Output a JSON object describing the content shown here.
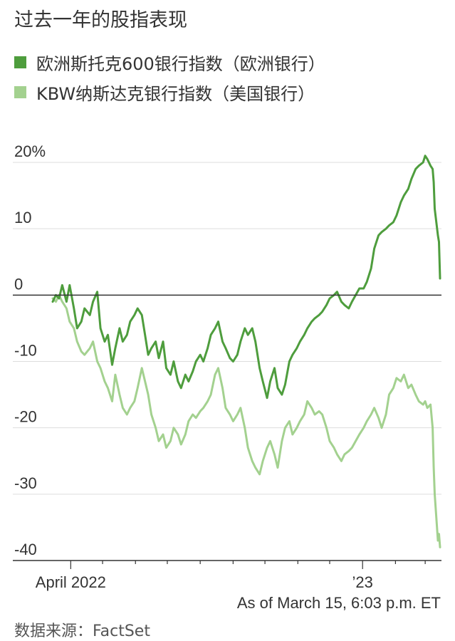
{
  "title": "过去一年的股指表现",
  "source": "数据来源：FactSet",
  "as_of": "As of March 15, 6:03 p.m. ET",
  "colors": {
    "europe": "#4e9d3d",
    "us": "#a3d18f",
    "grid": "#dddddd",
    "zero": "#333333"
  },
  "chart_data": {
    "type": "line",
    "y_unit": "%",
    "ylim": [
      -40,
      20
    ],
    "y_ticks": [
      20,
      10,
      0,
      -10,
      -20,
      -30,
      -40
    ],
    "y_tick_labels": [
      "20%",
      "10",
      "0",
      "-10",
      "-20",
      "-30",
      "-40"
    ],
    "x_range": [
      "2022-03-15",
      "2023-03-15"
    ],
    "x_tick_labels": [
      {
        "date": "2022-04-01",
        "label": "April 2022"
      },
      {
        "date": "2023-01-01",
        "label": "’23"
      }
    ],
    "x_minor_ticks": [
      "2022-05-01",
      "2022-06-01",
      "2022-07-01",
      "2022-08-01",
      "2022-09-01",
      "2022-10-01",
      "2022-11-01",
      "2022-12-01",
      "2023-02-01",
      "2023-03-01"
    ],
    "grid": true,
    "legend_position": "top-left",
    "series": [
      {
        "key": "europe",
        "name": "欧洲斯托克600银行指数（欧洲银行）",
        "points": [
          [
            "2022-03-15",
            -1
          ],
          [
            "2022-03-18",
            0
          ],
          [
            "2022-03-21",
            -0.5
          ],
          [
            "2022-03-24",
            1.5
          ],
          [
            "2022-03-28",
            -1
          ],
          [
            "2022-03-31",
            1.5
          ],
          [
            "2022-04-04",
            -2
          ],
          [
            "2022-04-07",
            -5
          ],
          [
            "2022-04-11",
            -4
          ],
          [
            "2022-04-14",
            -2
          ],
          [
            "2022-04-19",
            -3
          ],
          [
            "2022-04-22",
            -1
          ],
          [
            "2022-04-26",
            0.5
          ],
          [
            "2022-04-29",
            -5
          ],
          [
            "2022-05-03",
            -7
          ],
          [
            "2022-05-06",
            -6
          ],
          [
            "2022-05-10",
            -10.5
          ],
          [
            "2022-05-13",
            -8
          ],
          [
            "2022-05-17",
            -5
          ],
          [
            "2022-05-20",
            -7
          ],
          [
            "2022-05-24",
            -6
          ],
          [
            "2022-05-27",
            -4
          ],
          [
            "2022-05-31",
            -3
          ],
          [
            "2022-06-03",
            -2
          ],
          [
            "2022-06-07",
            -3
          ],
          [
            "2022-06-10",
            -6
          ],
          [
            "2022-06-13",
            -9
          ],
          [
            "2022-06-16",
            -8
          ],
          [
            "2022-06-20",
            -7
          ],
          [
            "2022-06-23",
            -9.5
          ],
          [
            "2022-06-27",
            -7
          ],
          [
            "2022-06-30",
            -11
          ],
          [
            "2022-07-04",
            -12
          ],
          [
            "2022-07-07",
            -10
          ],
          [
            "2022-07-11",
            -13
          ],
          [
            "2022-07-14",
            -14
          ],
          [
            "2022-07-18",
            -12
          ],
          [
            "2022-07-21",
            -13
          ],
          [
            "2022-07-25",
            -11.5
          ],
          [
            "2022-07-28",
            -10
          ],
          [
            "2022-08-01",
            -9
          ],
          [
            "2022-08-04",
            -10
          ],
          [
            "2022-08-08",
            -8
          ],
          [
            "2022-08-11",
            -6
          ],
          [
            "2022-08-15",
            -5
          ],
          [
            "2022-08-18",
            -4
          ],
          [
            "2022-08-22",
            -7
          ],
          [
            "2022-08-25",
            -8
          ],
          [
            "2022-08-29",
            -9.5
          ],
          [
            "2022-09-01",
            -10
          ],
          [
            "2022-09-05",
            -9
          ],
          [
            "2022-09-08",
            -7
          ],
          [
            "2022-09-12",
            -5
          ],
          [
            "2022-09-15",
            -6
          ],
          [
            "2022-09-19",
            -5
          ],
          [
            "2022-09-22",
            -7
          ],
          [
            "2022-09-26",
            -11
          ],
          [
            "2022-09-29",
            -13
          ],
          [
            "2022-10-03",
            -15.5
          ],
          [
            "2022-10-06",
            -13
          ],
          [
            "2022-10-10",
            -11
          ],
          [
            "2022-10-13",
            -14
          ],
          [
            "2022-10-17",
            -15
          ],
          [
            "2022-10-20",
            -13.5
          ],
          [
            "2022-10-24",
            -10
          ],
          [
            "2022-10-27",
            -9
          ],
          [
            "2022-10-31",
            -8
          ],
          [
            "2022-11-03",
            -7
          ],
          [
            "2022-11-07",
            -6
          ],
          [
            "2022-11-10",
            -5
          ],
          [
            "2022-11-14",
            -4
          ],
          [
            "2022-11-17",
            -3.5
          ],
          [
            "2022-11-21",
            -3
          ],
          [
            "2022-11-24",
            -2.5
          ],
          [
            "2022-11-28",
            -1.5
          ],
          [
            "2022-12-01",
            -0.5
          ],
          [
            "2022-12-05",
            0
          ],
          [
            "2022-12-08",
            0.5
          ],
          [
            "2022-12-12",
            -1
          ],
          [
            "2022-12-15",
            -1.5
          ],
          [
            "2022-12-19",
            -2
          ],
          [
            "2022-12-22",
            -1
          ],
          [
            "2022-12-29",
            1
          ],
          [
            "2023-01-02",
            1
          ],
          [
            "2023-01-05",
            2
          ],
          [
            "2023-01-09",
            4
          ],
          [
            "2023-01-12",
            7
          ],
          [
            "2023-01-16",
            9
          ],
          [
            "2023-01-19",
            9.5
          ],
          [
            "2023-01-23",
            10
          ],
          [
            "2023-01-26",
            10.5
          ],
          [
            "2023-01-30",
            11
          ],
          [
            "2023-02-02",
            12
          ],
          [
            "2023-02-06",
            14
          ],
          [
            "2023-02-09",
            15
          ],
          [
            "2023-02-13",
            16
          ],
          [
            "2023-02-16",
            17.5
          ],
          [
            "2023-02-20",
            19
          ],
          [
            "2023-02-23",
            19.5
          ],
          [
            "2023-02-27",
            20
          ],
          [
            "2023-03-01",
            21
          ],
          [
            "2023-03-03",
            20.5
          ],
          [
            "2023-03-06",
            19.5
          ],
          [
            "2023-03-08",
            19
          ],
          [
            "2023-03-09",
            17
          ],
          [
            "2023-03-10",
            13
          ],
          [
            "2023-03-13",
            9
          ],
          [
            "2023-03-14",
            8
          ],
          [
            "2023-03-15",
            2.5
          ]
        ]
      },
      {
        "key": "us",
        "name": "KBW纳斯达克银行指数（美国银行）",
        "points": [
          [
            "2022-03-15",
            -0.5
          ],
          [
            "2022-03-18",
            -1
          ],
          [
            "2022-03-21",
            0
          ],
          [
            "2022-03-24",
            -1
          ],
          [
            "2022-03-28",
            -2
          ],
          [
            "2022-03-31",
            -4
          ],
          [
            "2022-04-04",
            -5
          ],
          [
            "2022-04-07",
            -7
          ],
          [
            "2022-04-11",
            -8.5
          ],
          [
            "2022-04-14",
            -9
          ],
          [
            "2022-04-19",
            -8
          ],
          [
            "2022-04-22",
            -7
          ],
          [
            "2022-04-26",
            -10
          ],
          [
            "2022-04-29",
            -11
          ],
          [
            "2022-05-03",
            -13
          ],
          [
            "2022-05-06",
            -14
          ],
          [
            "2022-05-10",
            -16
          ],
          [
            "2022-05-13",
            -12
          ],
          [
            "2022-05-17",
            -15
          ],
          [
            "2022-05-20",
            -17
          ],
          [
            "2022-05-24",
            -18
          ],
          [
            "2022-05-27",
            -17
          ],
          [
            "2022-05-31",
            -16
          ],
          [
            "2022-06-03",
            -14
          ],
          [
            "2022-06-07",
            -11
          ],
          [
            "2022-06-10",
            -13
          ],
          [
            "2022-06-13",
            -15
          ],
          [
            "2022-06-16",
            -18
          ],
          [
            "2022-06-20",
            -20
          ],
          [
            "2022-06-23",
            -22
          ],
          [
            "2022-06-27",
            -21
          ],
          [
            "2022-06-30",
            -23
          ],
          [
            "2022-07-04",
            -22
          ],
          [
            "2022-07-07",
            -20
          ],
          [
            "2022-07-11",
            -21
          ],
          [
            "2022-07-14",
            -22.5
          ],
          [
            "2022-07-18",
            -21
          ],
          [
            "2022-07-21",
            -19
          ],
          [
            "2022-07-25",
            -18
          ],
          [
            "2022-07-28",
            -18.5
          ],
          [
            "2022-08-01",
            -17.5
          ],
          [
            "2022-08-04",
            -17
          ],
          [
            "2022-08-08",
            -16
          ],
          [
            "2022-08-11",
            -15
          ],
          [
            "2022-08-15",
            -12
          ],
          [
            "2022-08-18",
            -11
          ],
          [
            "2022-08-22",
            -14
          ],
          [
            "2022-08-25",
            -17
          ],
          [
            "2022-08-29",
            -18
          ],
          [
            "2022-09-01",
            -19
          ],
          [
            "2022-09-05",
            -18
          ],
          [
            "2022-09-08",
            -17
          ],
          [
            "2022-09-12",
            -20
          ],
          [
            "2022-09-15",
            -23
          ],
          [
            "2022-09-19",
            -25
          ],
          [
            "2022-09-22",
            -26
          ],
          [
            "2022-09-26",
            -27
          ],
          [
            "2022-09-29",
            -25
          ],
          [
            "2022-10-03",
            -23
          ],
          [
            "2022-10-06",
            -22
          ],
          [
            "2022-10-10",
            -24
          ],
          [
            "2022-10-13",
            -26
          ],
          [
            "2022-10-17",
            -22
          ],
          [
            "2022-10-20",
            -20
          ],
          [
            "2022-10-24",
            -19
          ],
          [
            "2022-10-27",
            -21
          ],
          [
            "2022-10-31",
            -20
          ],
          [
            "2022-11-03",
            -19
          ],
          [
            "2022-11-07",
            -18
          ],
          [
            "2022-11-10",
            -16
          ],
          [
            "2022-11-14",
            -17
          ],
          [
            "2022-11-17",
            -18
          ],
          [
            "2022-11-21",
            -17.5
          ],
          [
            "2022-11-24",
            -18
          ],
          [
            "2022-11-28",
            -20
          ],
          [
            "2022-12-01",
            -22
          ],
          [
            "2022-12-05",
            -23
          ],
          [
            "2022-12-08",
            -24
          ],
          [
            "2022-12-12",
            -25
          ],
          [
            "2022-12-15",
            -24
          ],
          [
            "2022-12-19",
            -23.5
          ],
          [
            "2022-12-22",
            -23
          ],
          [
            "2022-12-29",
            -21
          ],
          [
            "2023-01-02",
            -20
          ],
          [
            "2023-01-05",
            -19
          ],
          [
            "2023-01-09",
            -18
          ],
          [
            "2023-01-12",
            -17
          ],
          [
            "2023-01-16",
            -18.5
          ],
          [
            "2023-01-19",
            -20
          ],
          [
            "2023-01-23",
            -18
          ],
          [
            "2023-01-26",
            -15
          ],
          [
            "2023-01-30",
            -14
          ],
          [
            "2023-02-02",
            -12.5
          ],
          [
            "2023-02-06",
            -13
          ],
          [
            "2023-02-09",
            -12
          ],
          [
            "2023-02-13",
            -14
          ],
          [
            "2023-02-16",
            -13.5
          ],
          [
            "2023-02-20",
            -15
          ],
          [
            "2023-02-23",
            -16
          ],
          [
            "2023-02-27",
            -16.5
          ],
          [
            "2023-03-01",
            -16
          ],
          [
            "2023-03-03",
            -17
          ],
          [
            "2023-03-06",
            -16.5
          ],
          [
            "2023-03-08",
            -20
          ],
          [
            "2023-03-09",
            -26
          ],
          [
            "2023-03-10",
            -30
          ],
          [
            "2023-03-13",
            -37
          ],
          [
            "2023-03-14",
            -36
          ],
          [
            "2023-03-15",
            -38
          ]
        ]
      }
    ]
  }
}
